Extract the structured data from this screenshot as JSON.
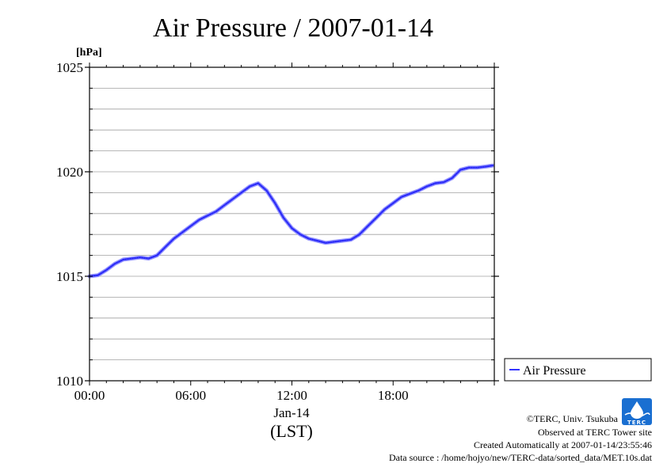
{
  "chart_data": {
    "type": "line",
    "title": "Air Pressure / 2007-01-14",
    "ylabel": "[hPa]",
    "xlabel": "(LST)",
    "x_date_label": "Jan-14",
    "x_unit": "hours",
    "xlim": [
      0,
      24
    ],
    "ylim": [
      1010,
      1025
    ],
    "y_ticks": [
      {
        "value": 1010,
        "label": "1010"
      },
      {
        "value": 1015,
        "label": "1015"
      },
      {
        "value": 1020,
        "label": "1020"
      },
      {
        "value": 1025,
        "label": "1025"
      }
    ],
    "y_minor_step": 1,
    "x_ticks": [
      {
        "value": 0,
        "label": "00:00"
      },
      {
        "value": 6,
        "label": "06:00"
      },
      {
        "value": 12,
        "label": "12:00"
      },
      {
        "value": 18,
        "label": "18:00"
      }
    ],
    "grid": true,
    "legend_position": "right",
    "series": [
      {
        "name": "Air Pressure",
        "color": "#3333ff",
        "x": [
          0,
          0.5,
          1,
          1.5,
          2,
          2.5,
          3,
          3.5,
          4,
          4.5,
          5,
          5.5,
          6,
          6.5,
          7,
          7.5,
          8,
          8.5,
          9,
          9.5,
          10,
          10.5,
          11,
          11.5,
          12,
          12.5,
          13,
          13.5,
          14,
          14.5,
          15,
          15.5,
          16,
          16.5,
          17,
          17.5,
          18,
          18.5,
          19,
          19.5,
          20,
          20.5,
          21,
          21.5,
          22,
          22.5,
          23,
          23.5,
          23.9
        ],
        "values": [
          1015.0,
          1015.05,
          1015.3,
          1015.6,
          1015.8,
          1015.85,
          1015.9,
          1015.85,
          1016.0,
          1016.4,
          1016.8,
          1017.1,
          1017.4,
          1017.7,
          1017.9,
          1018.1,
          1018.4,
          1018.7,
          1019.0,
          1019.3,
          1019.45,
          1019.1,
          1018.5,
          1017.8,
          1017.3,
          1017.0,
          1016.8,
          1016.7,
          1016.6,
          1016.65,
          1016.7,
          1016.75,
          1017.0,
          1017.4,
          1017.8,
          1018.2,
          1018.5,
          1018.8,
          1018.95,
          1019.1,
          1019.3,
          1019.45,
          1019.5,
          1019.7,
          1020.1,
          1020.2,
          1020.2,
          1020.25,
          1020.3
        ]
      }
    ]
  },
  "logo": {
    "label": "TERC",
    "colors": {
      "primary": "#1a6fd1",
      "water": "#ffffff"
    }
  },
  "credits": {
    "line1": "©TERC, Univ. Tsukuba",
    "line2": "Observed at TERC Tower site",
    "line3": "Created Automatically at 2007-01-14/23:55:46",
    "line4": "Data source : /home/hojyo/new/TERC-data/sorted_data/MET.10s.dat"
  }
}
